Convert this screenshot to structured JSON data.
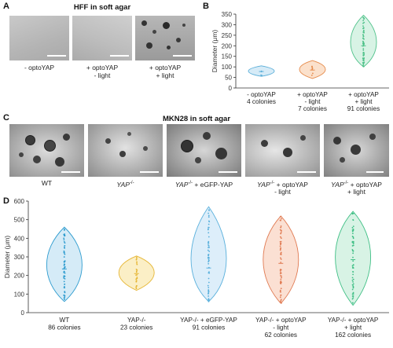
{
  "panels": {
    "a": {
      "letter": "A",
      "title": "HFF in soft agar",
      "captions": [
        [
          "- optoYAP"
        ],
        [
          "+ optoYAP",
          "- light"
        ],
        [
          "+ optoYAP",
          "+ light"
        ]
      ]
    },
    "b": {
      "letter": "B"
    },
    "c": {
      "letter": "C",
      "title": "MKN28 in soft agar",
      "captions": [
        [
          "WT"
        ],
        [
          "YAP",
          "-/-"
        ],
        [
          "YAP",
          "-/-",
          " + eGFP-YAP"
        ],
        [
          "YAP",
          "-/-",
          " + optoYAP",
          "- light"
        ],
        [
          "YAP",
          "-/-",
          " + optoYAP",
          "+ light"
        ]
      ]
    },
    "d": {
      "letter": "D"
    }
  },
  "chart_data": [
    {
      "panel": "B",
      "type": "violin",
      "ylabel": "Diameter (μm)",
      "ylim": [
        0,
        350
      ],
      "yticks": [
        "0",
        "50",
        "100",
        "150",
        "200",
        "250",
        "300",
        "350"
      ],
      "categories": [
        {
          "l1": "- optoYAP",
          "l2": "4 colonies",
          "l3": ""
        },
        {
          "l1": "+ optoYAP",
          "l2": "- light",
          "l3": "7 colonies"
        },
        {
          "l1": "+ optoYAP",
          "l2": "+ light",
          "l3": "91 colonies"
        }
      ],
      "series": [
        {
          "min": 55,
          "max": 105,
          "median": 78,
          "color": "#5aaed8",
          "fill": "#d6ebf7",
          "n": 4
        },
        {
          "min": 45,
          "max": 130,
          "median": 85,
          "color": "#e58a4a",
          "fill": "#fbe1cc",
          "n": 7
        },
        {
          "min": 100,
          "max": 345,
          "median": 200,
          "color": "#4fc28a",
          "fill": "#d8f3e5",
          "n": 91
        }
      ]
    },
    {
      "panel": "D",
      "type": "violin",
      "ylabel": "Diameter (μm)",
      "ylim": [
        0,
        600
      ],
      "yticks": [
        "0",
        "100",
        "200",
        "300",
        "400",
        "500",
        "600"
      ],
      "categories": [
        {
          "l1": "WT",
          "l2": "86 colonies",
          "l3": ""
        },
        {
          "l1": "YAP-/-",
          "l2": "23 colonies",
          "l3": ""
        },
        {
          "l1": "YAP-/- + eGFP-YAP",
          "l2": "91 colonies",
          "l3": ""
        },
        {
          "l1": "YAP-/- + optoYAP",
          "l2": "- light",
          "l3": "62 colonies"
        },
        {
          "l1": "YAP-/- + optoYAP",
          "l2": "+ light",
          "l3": "162 colonies"
        }
      ],
      "series": [
        {
          "min": 60,
          "max": 460,
          "median": 235,
          "color": "#2e9ccf",
          "fill": "#d5ebf7",
          "n": 86
        },
        {
          "min": 120,
          "max": 305,
          "median": 210,
          "color": "#e6b634",
          "fill": "#fbefc6",
          "n": 23
        },
        {
          "min": 60,
          "max": 570,
          "median": 240,
          "color": "#5ab0dc",
          "fill": "#ddeefa",
          "n": 91
        },
        {
          "min": 50,
          "max": 520,
          "median": 265,
          "color": "#e07a52",
          "fill": "#fbe0d3",
          "n": 62
        },
        {
          "min": 40,
          "max": 545,
          "median": 285,
          "color": "#3fbf85",
          "fill": "#d8f3e5",
          "n": 162
        }
      ]
    }
  ]
}
